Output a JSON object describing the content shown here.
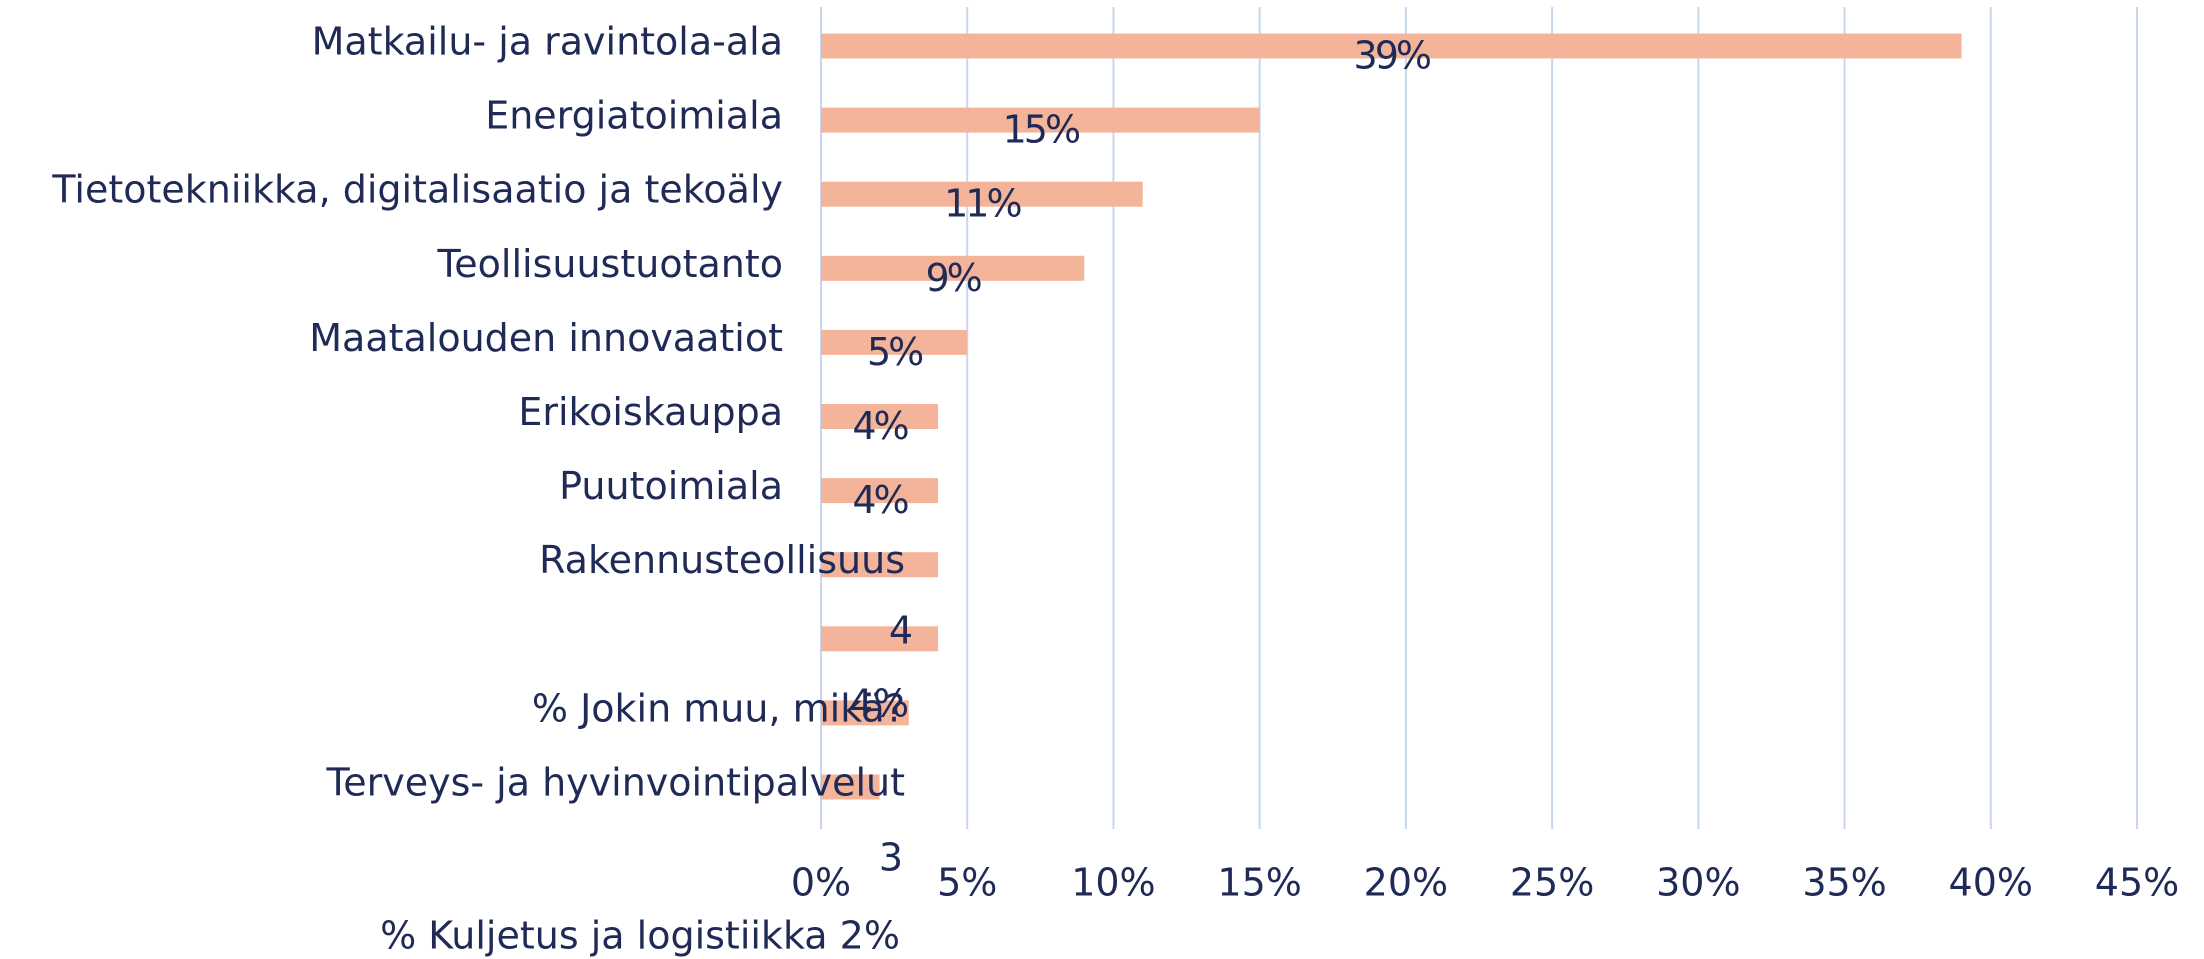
{
  "chart_data": {
    "type": "bar",
    "orientation": "horizontal",
    "categories": [
      "Matkailu- ja ravintola-ala",
      "Energiatoimiala",
      "Tietotekniikka, digitalisaatio ja tekoäly",
      "Teollisuustuotanto",
      "Maatalouden innovaatiot",
      "Erikoiskauppa",
      "Puutoimiala",
      "Rakennusteollisuus",
      null,
      "% Jokin muu, mikä?",
      "Terveys- ja hyvinvointipalvelut"
    ],
    "values": [
      39,
      15,
      11,
      9,
      5,
      4,
      4,
      4,
      4,
      3,
      2
    ],
    "value_labels": [
      "39%",
      "15%",
      "11%",
      "9%",
      "5%",
      "4%",
      "4%",
      null,
      null,
      null,
      null
    ],
    "color": "#f4b49a",
    "xlim": [
      0,
      45
    ],
    "xticks": [
      {
        "value": 0,
        "label": "0%"
      },
      {
        "value": 5,
        "label": "5%"
      },
      {
        "value": 10,
        "label": "10%"
      },
      {
        "value": 15,
        "label": "15%"
      },
      {
        "value": 20,
        "label": "20%"
      },
      {
        "value": 25,
        "label": "25%"
      },
      {
        "value": 30,
        "label": "30%"
      },
      {
        "value": 35,
        "label": "35%"
      },
      {
        "value": 40,
        "label": "40%"
      },
      {
        "value": 45,
        "label": "45%"
      }
    ],
    "grid": true,
    "annotations": [
      "4",
      "4%",
      "3",
      "% Kuljetus ja logistiikka 2%"
    ]
  }
}
